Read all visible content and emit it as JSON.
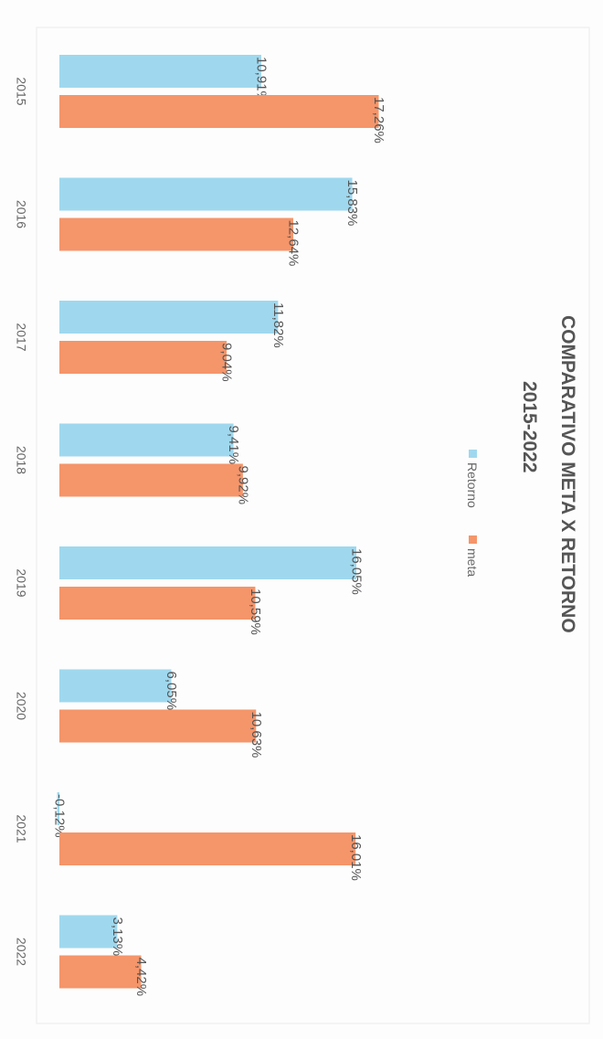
{
  "chart_data": {
    "type": "bar",
    "orientation": "rotated-90-clockwise",
    "title": "COMPARATIVO META X RETORNO",
    "subtitle": "2015-2022",
    "categories": [
      "2015",
      "2016",
      "2017",
      "2018",
      "2019",
      "2020",
      "2021",
      "2022"
    ],
    "series": [
      {
        "name": "Retorno",
        "color": "#9fd8ee",
        "values": [
          10.91,
          15.83,
          11.82,
          9.41,
          16.05,
          6.05,
          -0.12,
          3.13
        ],
        "labels": [
          "10,91%",
          "15,83%",
          "11,82%",
          "9,41%",
          "16,05%",
          "6,05%",
          "-0,12%",
          "3,13%"
        ]
      },
      {
        "name": "meta",
        "color": "#f5956a",
        "values": [
          17.26,
          12.64,
          9.04,
          9.92,
          10.59,
          10.63,
          16.01,
          4.42
        ],
        "labels": [
          "17,26%",
          "12,64%",
          "9,04%",
          "9,92%",
          "10,59%",
          "10,63%",
          "16,01%",
          "4,42%"
        ]
      }
    ],
    "value_axis_visible": false,
    "grid": false,
    "legend_position": "top"
  }
}
